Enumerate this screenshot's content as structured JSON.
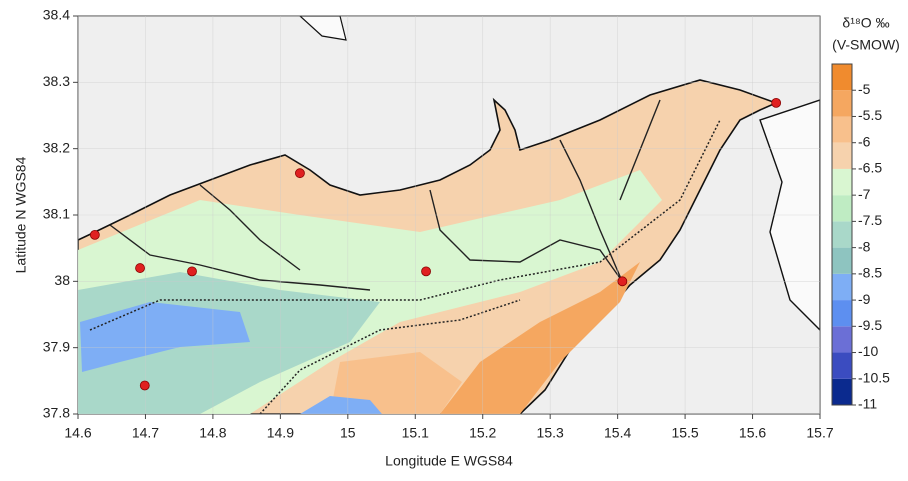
{
  "chart_data": {
    "type": "map",
    "x_label": "Longitude E WGS84",
    "y_label": "Latitude N WGS84",
    "xlim": [
      14.6,
      15.7
    ],
    "ylim": [
      37.8,
      38.4
    ],
    "xticks": [
      14.6,
      14.7,
      14.8,
      14.9,
      15,
      15.1,
      15.2,
      15.3,
      15.4,
      15.5,
      15.6,
      15.7
    ],
    "yticks": [
      37.8,
      37.9,
      38,
      38.1,
      38.2,
      38.3,
      38.4
    ],
    "grid": true,
    "points": {
      "color": "#e02020",
      "x": [
        14.625,
        14.929,
        14.692,
        14.769,
        15.116,
        15.407,
        15.635,
        14.699
      ],
      "y": [
        38.07,
        38.163,
        38.02,
        38.015,
        38.015,
        38.0,
        38.269,
        37.843
      ]
    },
    "colorbar": {
      "title": "δ¹⁸O ‰",
      "subtitle": "(V-SMOW)",
      "lim": [
        -11,
        -4.5
      ],
      "ticks": [
        -11,
        -10.5,
        -10,
        -9.5,
        -9,
        -8.5,
        -8,
        -7.5,
        -7,
        -6.5,
        -6,
        -5.5,
        -5
      ],
      "colors": [
        "#0b2a8e",
        "#3b4cc0",
        "#6b6fd6",
        "#5d8ff0",
        "#7eaef5",
        "#8ec4c0",
        "#a9d8c9",
        "#bfecc3",
        "#d9f6d1",
        "#f6d2ad",
        "#f8c08c",
        "#f5a760",
        "#f08b2e"
      ]
    }
  }
}
